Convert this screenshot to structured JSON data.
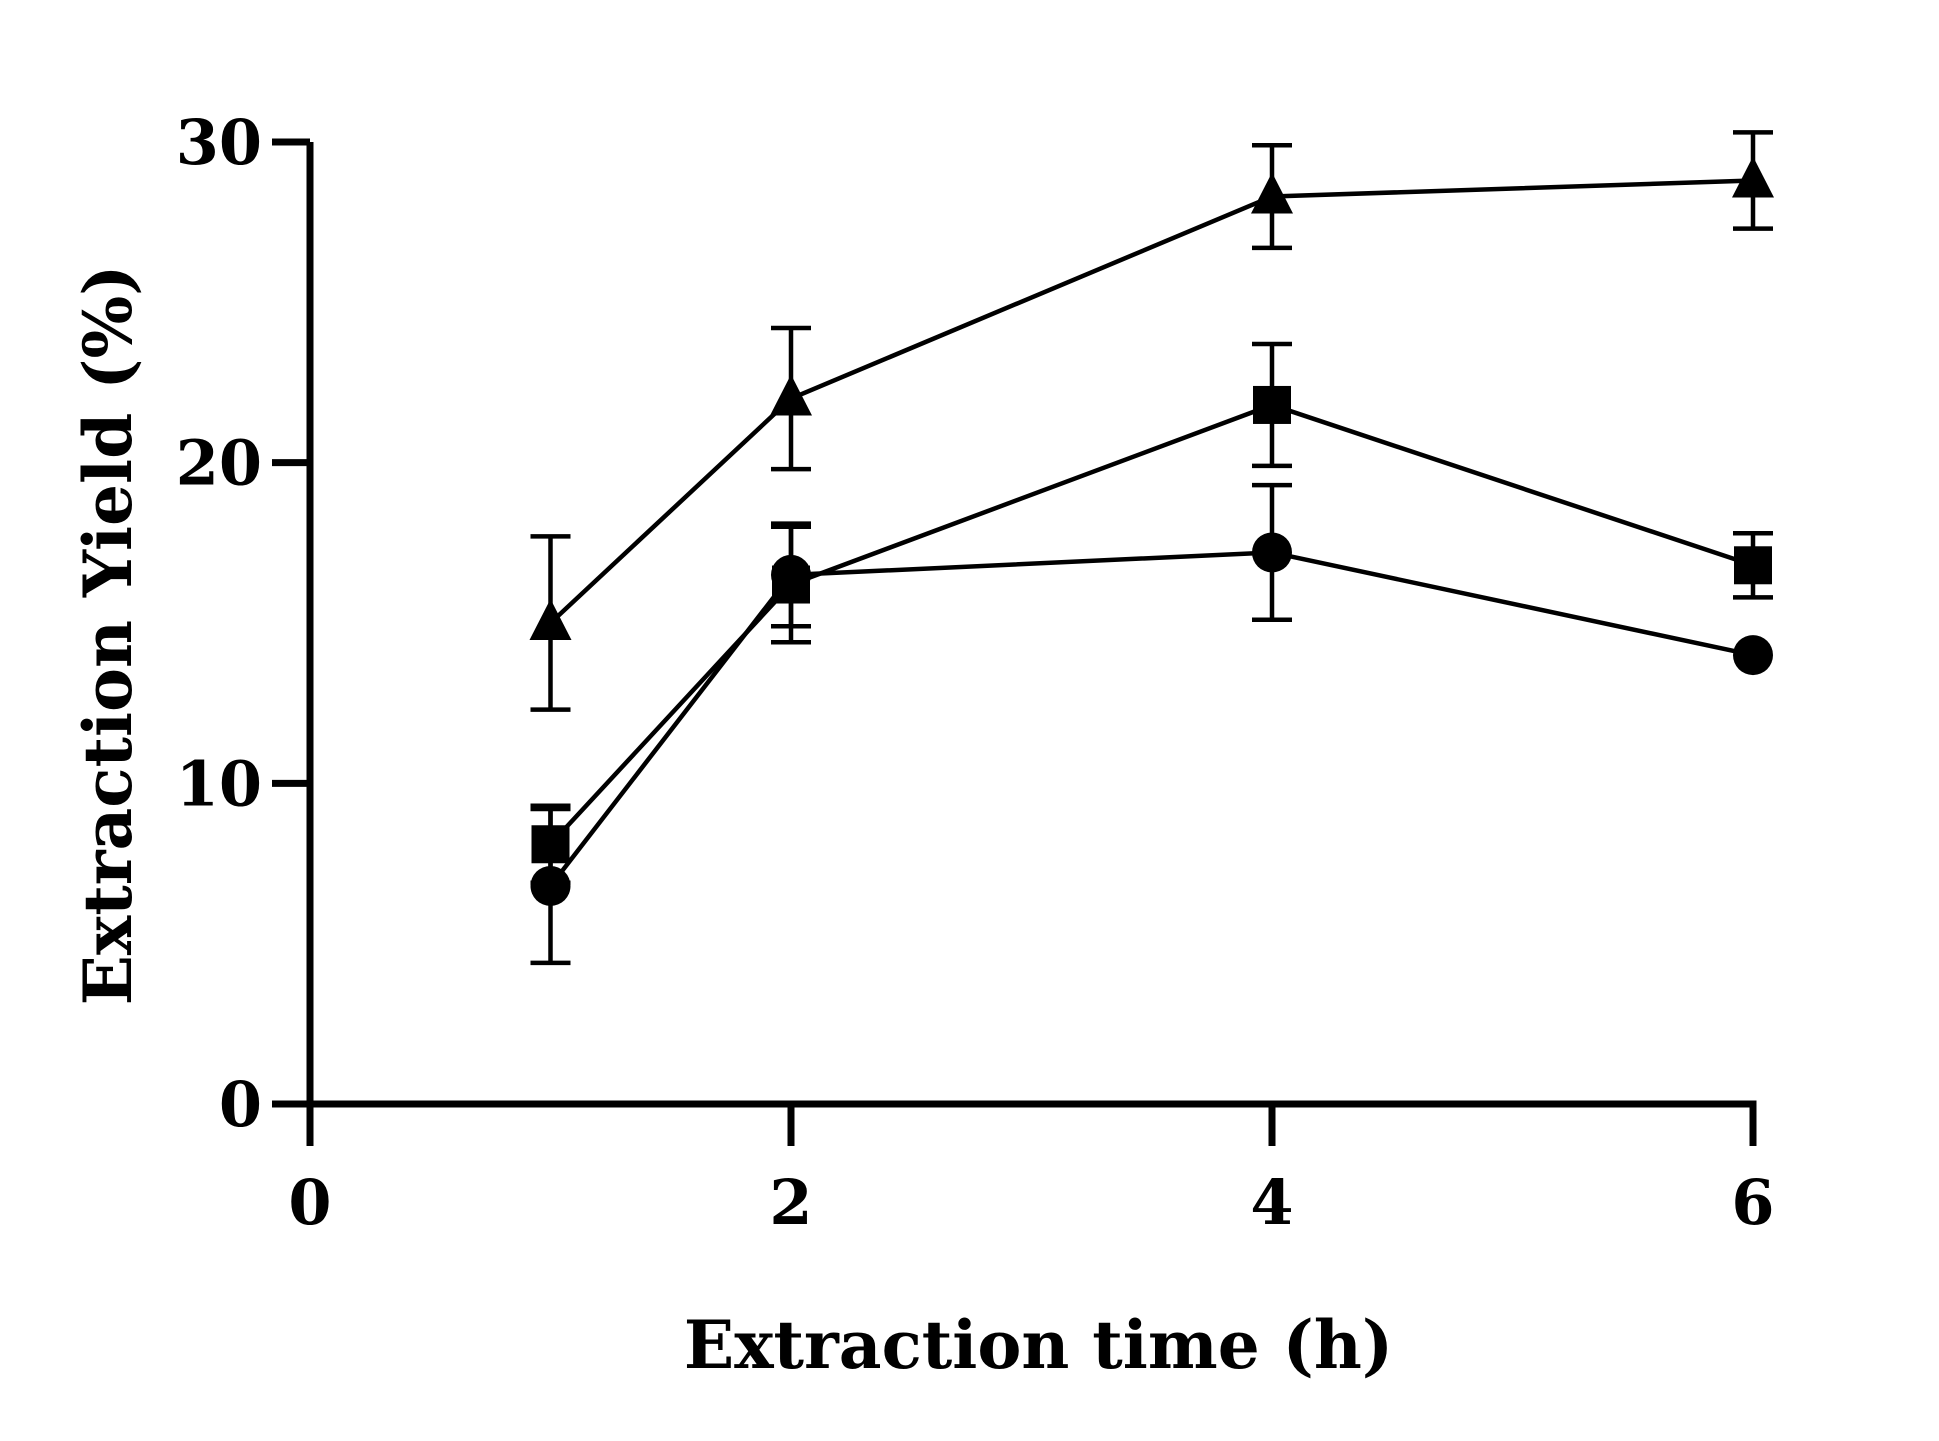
{
  "chart_data": {
    "type": "line",
    "title": "",
    "xlabel": "Extraction time (h)",
    "ylabel": "Extraction Yield (%)",
    "xlim": [
      0,
      6
    ],
    "ylim": [
      0,
      30
    ],
    "xticks": [
      "0",
      "2",
      "4",
      "6"
    ],
    "yticks": [
      "0",
      "10",
      "20",
      "30"
    ],
    "grid": false,
    "legend": "none",
    "colors": {
      "line": "#000000",
      "background": "#ffffff"
    },
    "series": [
      {
        "name": "triangle",
        "marker": "triangle",
        "x": [
          1,
          2,
          4,
          6
        ],
        "y": [
          15.0,
          22.0,
          28.3,
          28.8
        ],
        "err": [
          2.7,
          2.2,
          1.6,
          1.5
        ]
      },
      {
        "name": "square",
        "marker": "square",
        "x": [
          1,
          2,
          4,
          6
        ],
        "y": [
          8.1,
          16.2,
          21.8,
          16.8
        ],
        "err": [
          1.2,
          1.8,
          1.9,
          1.0
        ]
      },
      {
        "name": "circle",
        "marker": "circle",
        "x": [
          1,
          2,
          4,
          6
        ],
        "y": [
          6.8,
          16.5,
          17.2,
          14.0
        ],
        "err": [
          2.4,
          1.6,
          2.1,
          0
        ]
      }
    ]
  }
}
